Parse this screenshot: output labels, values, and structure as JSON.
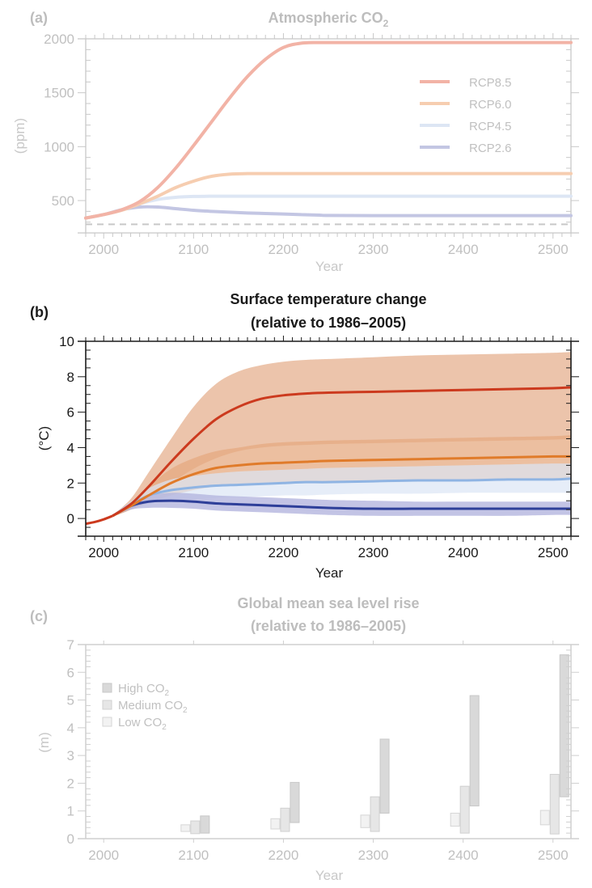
{
  "figure": {
    "panels": [
      {
        "id": "a",
        "label": "(a)",
        "title": "Atmospheric CO",
        "title_subscript": "2",
        "ylabel": "(ppm)",
        "xlabel": "Year",
        "emphasis": "faded"
      },
      {
        "id": "b",
        "label": "(b)",
        "title_line1": "Surface temperature change",
        "title_line2": "(relative to 1986–2005)",
        "ylabel": "(°C)",
        "xlabel": "Year",
        "emphasis": "highlighted"
      },
      {
        "id": "c",
        "label": "(c)",
        "title_line1": "Global mean sea level rise",
        "title_line2": "(relative to 1986–2005)",
        "ylabel": "(m)",
        "xlabel": "Year",
        "emphasis": "faded"
      }
    ]
  },
  "chart_data": [
    {
      "type": "line",
      "panel": "a",
      "title": "Atmospheric CO2",
      "xlabel": "Year",
      "ylabel": "(ppm)",
      "xlim": [
        1980,
        2520
      ],
      "ylim": [
        200,
        2000
      ],
      "xticks": [
        2000,
        2100,
        2200,
        2300,
        2400,
        2500
      ],
      "yticks": [
        500,
        1000,
        1500,
        2000
      ],
      "reference_line": {
        "style": "dashed",
        "y": 280,
        "color": "#c8c8c8"
      },
      "legend": {
        "placement": "upper-right",
        "entries": [
          "RCP8.5",
          "RCP6.0",
          "RCP4.5",
          "RCP2.6"
        ]
      },
      "x": [
        1980,
        2000,
        2020,
        2040,
        2060,
        2080,
        2100,
        2120,
        2140,
        2160,
        2180,
        2200,
        2220,
        2240,
        2250,
        2300,
        2400,
        2500,
        2520
      ],
      "series": [
        {
          "name": "RCP8.5",
          "color": "#f2b3a6",
          "values": [
            338,
            370,
            415,
            490,
            620,
            800,
            1010,
            1230,
            1450,
            1650,
            1810,
            1920,
            1960,
            1965,
            1965,
            1965,
            1965,
            1965,
            1965
          ]
        },
        {
          "name": "RCP6.0",
          "color": "#f6cdb0",
          "values": [
            338,
            370,
            410,
            470,
            540,
            620,
            680,
            725,
            745,
            750,
            750,
            750,
            750,
            750,
            750,
            750,
            750,
            750,
            750
          ]
        },
        {
          "name": "RCP4.5",
          "color": "#dde6f4",
          "values": [
            338,
            370,
            410,
            470,
            510,
            530,
            538,
            540,
            540,
            540,
            540,
            540,
            540,
            540,
            540,
            540,
            540,
            540,
            540
          ]
        },
        {
          "name": "RCP2.6",
          "color": "#c3c6e3",
          "values": [
            338,
            370,
            415,
            440,
            440,
            425,
            410,
            400,
            392,
            385,
            380,
            375,
            370,
            365,
            362,
            360,
            360,
            360,
            360
          ]
        }
      ]
    },
    {
      "type": "area",
      "panel": "b",
      "title": "Surface temperature change (relative to 1986–2005)",
      "xlabel": "Year",
      "ylabel": "(°C)",
      "xlim": [
        1980,
        2520
      ],
      "ylim": [
        -1,
        10
      ],
      "xticks": [
        2000,
        2100,
        2200,
        2300,
        2400,
        2500
      ],
      "yticks": [
        0,
        2,
        4,
        6,
        8,
        10
      ],
      "historical": {
        "color": "#cc3a1e",
        "x": [
          1980,
          1990,
          2000,
          2010
        ],
        "values": [
          -0.3,
          -0.2,
          -0.05,
          0.15
        ]
      },
      "x": [
        2010,
        2030,
        2050,
        2075,
        2100,
        2125,
        2150,
        2175,
        2200,
        2225,
        2250,
        2300,
        2350,
        2400,
        2450,
        2500,
        2520
      ],
      "series": [
        {
          "name": "RCP8.5",
          "line_color": "#cc3a1e",
          "band_color": "#ecc4ab",
          "values": [
            0.15,
            0.8,
            1.8,
            3.2,
            4.5,
            5.6,
            6.3,
            6.75,
            6.95,
            7.05,
            7.1,
            7.15,
            7.2,
            7.25,
            7.3,
            7.35,
            7.4
          ],
          "lower": [
            0.1,
            0.5,
            1.1,
            2.0,
            2.8,
            3.4,
            3.8,
            4.0,
            4.1,
            4.15,
            4.2,
            4.25,
            4.3,
            4.35,
            4.4,
            4.45,
            4.5
          ],
          "upper": [
            0.2,
            1.1,
            2.6,
            4.5,
            6.3,
            7.6,
            8.3,
            8.65,
            8.85,
            8.95,
            9.0,
            9.1,
            9.2,
            9.25,
            9.3,
            9.35,
            9.4
          ]
        },
        {
          "name": "RCP6.0",
          "line_color": "#e07b2a",
          "band_color": "#e6aa80",
          "values": [
            0.15,
            0.7,
            1.3,
            2.0,
            2.5,
            2.85,
            3.0,
            3.1,
            3.15,
            3.2,
            3.25,
            3.3,
            3.35,
            3.4,
            3.45,
            3.5,
            3.5
          ],
          "lower": [
            0.1,
            0.5,
            0.9,
            1.3,
            1.6,
            1.8,
            1.9,
            2.0,
            2.0,
            2.0,
            2.05,
            2.05,
            2.1,
            2.1,
            2.15,
            2.2,
            2.2
          ],
          "upper": [
            0.2,
            0.9,
            1.8,
            2.8,
            3.4,
            3.8,
            4.0,
            4.2,
            4.3,
            4.35,
            4.4,
            4.45,
            4.5,
            4.55,
            4.6,
            4.65,
            4.7
          ]
        },
        {
          "name": "RCP4.5",
          "line_color": "#8fb4e3",
          "band_color": "#dbe5f5",
          "values": [
            0.15,
            0.75,
            1.3,
            1.6,
            1.75,
            1.85,
            1.9,
            1.95,
            2.0,
            2.05,
            2.05,
            2.1,
            2.15,
            2.15,
            2.2,
            2.2,
            2.25
          ],
          "lower": [
            0.1,
            0.55,
            0.9,
            1.05,
            1.1,
            1.15,
            1.2,
            1.25,
            1.3,
            1.3,
            1.35,
            1.4,
            1.4,
            1.45,
            1.45,
            1.45,
            1.45
          ],
          "upper": [
            0.2,
            0.95,
            1.7,
            2.2,
            2.4,
            2.55,
            2.65,
            2.7,
            2.75,
            2.8,
            2.85,
            2.9,
            2.95,
            3.0,
            3.05,
            3.1,
            3.1
          ]
        },
        {
          "name": "RCP2.6",
          "line_color": "#2e3f99",
          "band_color": "#b4b5df",
          "values": [
            0.15,
            0.7,
            0.95,
            1.0,
            0.95,
            0.85,
            0.8,
            0.75,
            0.7,
            0.65,
            0.6,
            0.55,
            0.55,
            0.55,
            0.55,
            0.55,
            0.55
          ],
          "lower": [
            0.1,
            0.5,
            0.6,
            0.6,
            0.55,
            0.45,
            0.4,
            0.35,
            0.3,
            0.25,
            0.2,
            0.15,
            0.15,
            0.15,
            0.15,
            0.2,
            0.2
          ],
          "upper": [
            0.2,
            0.9,
            1.3,
            1.45,
            1.4,
            1.3,
            1.25,
            1.2,
            1.15,
            1.1,
            1.05,
            1.0,
            0.95,
            0.95,
            0.95,
            0.95,
            0.95
          ]
        }
      ]
    },
    {
      "type": "bar",
      "subtype": "floating-range",
      "panel": "c",
      "title": "Global mean sea level rise (relative to 1986–2005)",
      "xlabel": "Year",
      "ylabel": "(m)",
      "xlim": [
        1980,
        2520
      ],
      "ylim": [
        0,
        7
      ],
      "xticks": [
        2000,
        2100,
        2200,
        2300,
        2400,
        2500
      ],
      "yticks": [
        0,
        1,
        2,
        3,
        4,
        5,
        6,
        7
      ],
      "legend": {
        "placement": "upper-left",
        "entries": [
          "High CO2",
          "Medium CO2",
          "Low CO2"
        ]
      },
      "categories": [
        2100,
        2200,
        2300,
        2400,
        2500
      ],
      "series": [
        {
          "name": "Low CO2",
          "fill": "#f2f2f2",
          "stroke": "#d6d6d6",
          "ranges": [
            [
              0.26,
              0.5
            ],
            [
              0.35,
              0.72
            ],
            [
              0.4,
              0.85
            ],
            [
              0.45,
              0.92
            ],
            [
              0.5,
              1.02
            ]
          ]
        },
        {
          "name": "Medium CO2",
          "fill": "#e6e6e6",
          "stroke": "#d0d0d0",
          "ranges": [
            [
              0.18,
              0.64
            ],
            [
              0.26,
              1.1
            ],
            [
              0.26,
              1.51
            ],
            [
              0.2,
              1.89
            ],
            [
              0.17,
              2.32
            ]
          ]
        },
        {
          "name": "High CO2",
          "fill": "#d9d9d9",
          "stroke": "#c8c8c8",
          "ranges": [
            [
              0.2,
              0.82
            ],
            [
              0.58,
              2.03
            ],
            [
              0.92,
              3.59
            ],
            [
              1.18,
              5.16
            ],
            [
              1.51,
              6.63
            ]
          ]
        }
      ]
    }
  ]
}
